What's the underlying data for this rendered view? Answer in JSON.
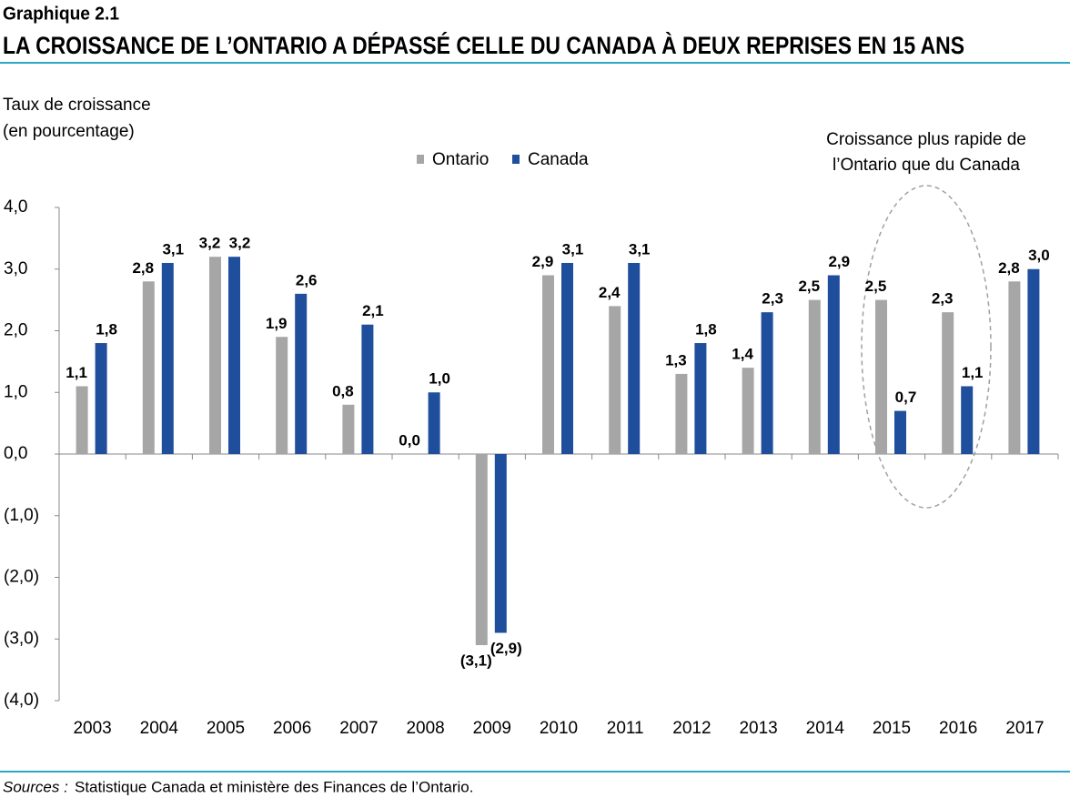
{
  "chart_data": {
    "type": "bar",
    "figure_label": "Graphique 2.1",
    "title": "LA CROISSANCE DE L’ONTARIO A DÉPASSÉ CELLE DU CANADA À DEUX REPRISES EN 15 ANS",
    "y_label": [
      "Taux de croissance",
      "(en pourcentage)"
    ],
    "annotation": [
      "Croissance plus rapide de",
      "l’Ontario que du Canada"
    ],
    "categories": [
      "2003",
      "2004",
      "2005",
      "2006",
      "2007",
      "2008",
      "2009",
      "2010",
      "2011",
      "2012",
      "2013",
      "2014",
      "2015",
      "2016",
      "2017"
    ],
    "series": [
      {
        "name": "Ontario",
        "color": "#a6a6a6",
        "values": [
          1.1,
          2.8,
          3.2,
          1.9,
          0.8,
          0.0,
          -3.1,
          2.9,
          2.4,
          1.3,
          1.4,
          2.5,
          2.5,
          2.3,
          2.8
        ],
        "value_labels": [
          "1,1",
          "2,8",
          "3,2",
          "1,9",
          "0,8",
          "0,0",
          "(3,1)",
          "2,9",
          "2,4",
          "1,3",
          "1,4",
          "2,5",
          "2,5",
          "2,3",
          "2,8"
        ]
      },
      {
        "name": "Canada",
        "color": "#1f4e9c",
        "values": [
          1.8,
          3.1,
          3.2,
          2.6,
          2.1,
          1.0,
          -2.9,
          3.1,
          3.1,
          1.8,
          2.3,
          2.9,
          0.7,
          1.1,
          3.0
        ],
        "value_labels": [
          "1,8",
          "3,1",
          "3,2",
          "2,6",
          "2,1",
          "1,0",
          "(2,9)",
          "3,1",
          "3,1",
          "1,8",
          "2,3",
          "2,9",
          "0,7",
          "1,1",
          "3,0"
        ]
      }
    ],
    "ylim": [
      -4,
      4
    ],
    "yticks": [
      {
        "value": -4,
        "label": "(4,0)"
      },
      {
        "value": -3,
        "label": "(3,0)"
      },
      {
        "value": -2,
        "label": "(2,0)"
      },
      {
        "value": -1,
        "label": "(1,0)"
      },
      {
        "value": 0,
        "label": "0,0"
      },
      {
        "value": 1,
        "label": "1,0"
      },
      {
        "value": 2,
        "label": "2,0"
      },
      {
        "value": 3,
        "label": "3,0"
      },
      {
        "value": 4,
        "label": "4,0"
      }
    ],
    "grid": false,
    "legend": "top",
    "source": {
      "label": "Sources :",
      "text": "Statistique Canada et ministère des Finances de l’Ontario."
    }
  }
}
